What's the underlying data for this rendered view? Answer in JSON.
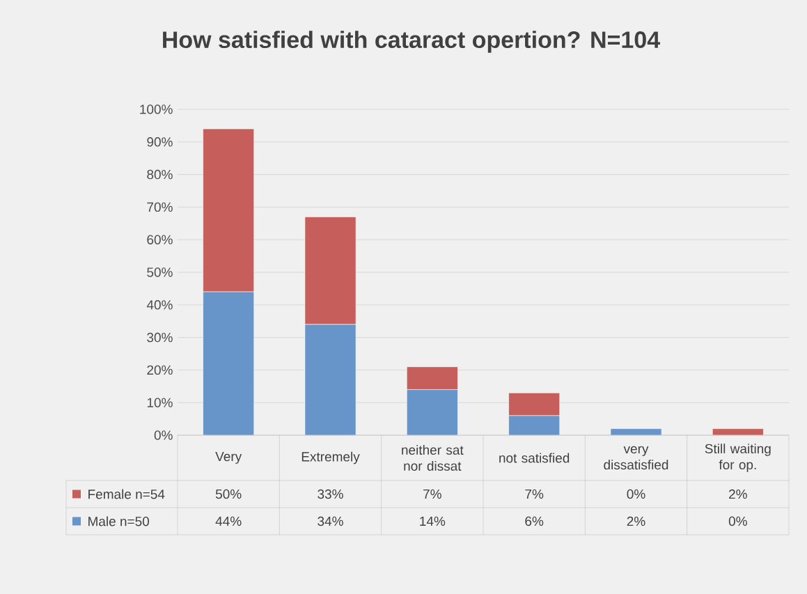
{
  "chart_data": {
    "type": "bar",
    "stacked": true,
    "title": "How satisfied with cataract opertion? N=104",
    "categories": [
      "Very",
      "Extremely",
      "neither sat nor dissat",
      "not satisfied",
      "very dissatisfied",
      "Still waiting for op."
    ],
    "series": [
      {
        "name": "Male n=50",
        "color": "#6794c9",
        "values": [
          44,
          34,
          14,
          6,
          2,
          0
        ],
        "value_labels": [
          "44%",
          "34%",
          "14%",
          "6%",
          "2%",
          "0%"
        ]
      },
      {
        "name": "Female n=54",
        "color": "#c65f5b",
        "values": [
          50,
          33,
          7,
          7,
          0,
          2
        ],
        "value_labels": [
          "50%",
          "33%",
          "7%",
          "7%",
          "0%",
          "2%"
        ]
      }
    ],
    "ylim": [
      0,
      100
    ],
    "yticks": [
      {
        "value": 0,
        "label": "0%"
      },
      {
        "value": 10,
        "label": "10%"
      },
      {
        "value": 20,
        "label": "20%"
      },
      {
        "value": 30,
        "label": "30%"
      },
      {
        "value": 40,
        "label": "40%"
      },
      {
        "value": 50,
        "label": "50%"
      },
      {
        "value": 60,
        "label": "60%"
      },
      {
        "value": 70,
        "label": "70%"
      },
      {
        "value": 80,
        "label": "80%"
      },
      {
        "value": 90,
        "label": "90%"
      },
      {
        "value": 100,
        "label": "100%"
      }
    ],
    "grid": "y",
    "legend": "bottom"
  }
}
